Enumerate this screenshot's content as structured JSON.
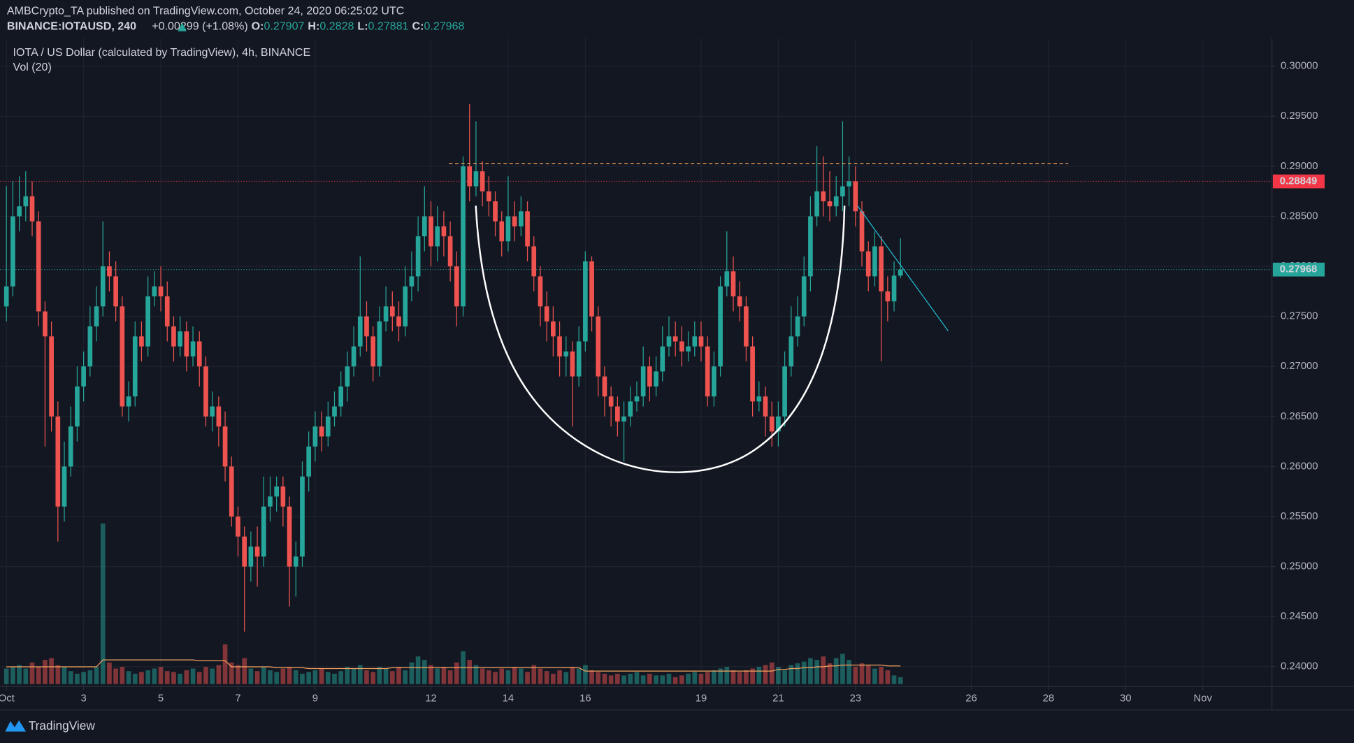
{
  "header": {
    "publisher": "AMBCrypto_TA published on TradingView.com, October 24, 2020 06:25:02 UTC",
    "symbol": "BINANCE:IOTAUSD, 240",
    "change": "+0.00299 (+1.08%)",
    "open_label": "O:",
    "high_label": "H:",
    "low_label": "L:",
    "close_label": "C:"
  },
  "footer": {
    "brand": "TradingView"
  },
  "chart_data": {
    "type": "candlestick",
    "title": "IOTA / US Dollar (calculated by TradingView), 4h, BINANCE",
    "volume_label": "Vol (20)",
    "up_color": "#26a69a",
    "down_color": "#ef5350",
    "volume_ma_color": "#f7a35c",
    "grid": true,
    "xlim": [
      -4,
      787
    ],
    "ylim": [
      0.238,
      0.3028
    ],
    "xticks": [
      {
        "value": 0,
        "label": "Oct"
      },
      {
        "value": 48,
        "label": "3"
      },
      {
        "value": 96,
        "label": "5"
      },
      {
        "value": 144,
        "label": "7"
      },
      {
        "value": 192,
        "label": "9"
      },
      {
        "value": 264,
        "label": "12"
      },
      {
        "value": 312,
        "label": "14"
      },
      {
        "value": 360,
        "label": "16"
      },
      {
        "value": 432,
        "label": "19"
      },
      {
        "value": 480,
        "label": "21"
      },
      {
        "value": 528,
        "label": "23"
      },
      {
        "value": 600,
        "label": "26"
      },
      {
        "value": 648,
        "label": "28"
      },
      {
        "value": 696,
        "label": "30"
      },
      {
        "value": 744,
        "label": "Nov"
      }
    ],
    "yticks": [
      {
        "value": 0.3,
        "label": "0.30000"
      },
      {
        "value": 0.295,
        "label": "0.29500"
      },
      {
        "value": 0.29,
        "label": "0.29000"
      },
      {
        "value": 0.285,
        "label": "0.28500"
      },
      {
        "value": 0.28,
        "label": "0.28000"
      },
      {
        "value": 0.275,
        "label": "0.27500"
      },
      {
        "value": 0.27,
        "label": "0.27000"
      },
      {
        "value": 0.265,
        "label": "0.26500"
      },
      {
        "value": 0.26,
        "label": "0.26000"
      },
      {
        "value": 0.255,
        "label": "0.25500"
      },
      {
        "value": 0.25,
        "label": "0.25000"
      },
      {
        "value": 0.245,
        "label": "0.24500"
      },
      {
        "value": 0.24,
        "label": "0.24000"
      }
    ],
    "price_lines": [
      {
        "value": 0.28849,
        "color": "#f23645"
      },
      {
        "value": 0.27968,
        "color": "#26a69a"
      }
    ],
    "x": [
      0,
      4,
      8,
      12,
      16,
      20,
      24,
      28,
      32,
      36,
      40,
      44,
      48,
      52,
      56,
      60,
      64,
      68,
      72,
      76,
      80,
      84,
      88,
      92,
      96,
      100,
      104,
      108,
      112,
      116,
      120,
      124,
      128,
      132,
      136,
      140,
      144,
      148,
      152,
      156,
      160,
      164,
      168,
      172,
      176,
      180,
      184,
      188,
      192,
      196,
      200,
      204,
      208,
      212,
      216,
      220,
      224,
      228,
      232,
      236,
      240,
      244,
      248,
      252,
      256,
      260,
      264,
      268,
      272,
      276,
      280,
      284,
      288,
      292,
      296,
      300,
      304,
      308,
      312,
      316,
      320,
      324,
      328,
      332,
      336,
      340,
      344,
      348,
      352,
      356,
      360,
      364,
      368,
      372,
      376,
      380,
      384,
      388,
      392,
      396,
      400,
      404,
      408,
      412,
      416,
      420,
      424,
      428,
      432,
      436,
      440,
      444,
      448,
      452,
      456,
      460,
      464,
      468,
      472,
      476,
      480,
      484,
      488,
      492,
      496,
      500,
      504,
      508,
      512,
      516,
      520,
      524,
      528,
      532,
      536,
      540,
      544,
      548,
      552,
      556
    ],
    "open": [
      0.276,
      0.278,
      0.285,
      0.286,
      0.287,
      0.2845,
      0.2755,
      0.273,
      0.265,
      0.256,
      0.26,
      0.264,
      0.268,
      0.27,
      0.274,
      0.276,
      0.28,
      0.279,
      0.276,
      0.266,
      0.267,
      0.273,
      0.272,
      0.277,
      0.278,
      0.277,
      0.274,
      0.272,
      0.2735,
      0.271,
      0.2725,
      0.27,
      0.265,
      0.266,
      0.264,
      0.26,
      0.255,
      0.253,
      0.25,
      0.252,
      0.251,
      0.256,
      0.257,
      0.258,
      0.256,
      0.25,
      0.251,
      0.259,
      0.262,
      0.264,
      0.263,
      0.265,
      0.266,
      0.268,
      0.27,
      0.272,
      0.275,
      0.273,
      0.27,
      0.2745,
      0.276,
      0.275,
      0.274,
      0.278,
      0.279,
      0.283,
      0.285,
      0.282,
      0.284,
      0.283,
      0.28,
      0.276,
      0.29,
      0.288,
      0.2895,
      0.2875,
      0.2865,
      0.2845,
      0.2825,
      0.285,
      0.284,
      0.2855,
      0.282,
      0.279,
      0.276,
      0.2745,
      0.273,
      0.271,
      0.2715,
      0.269,
      0.2725,
      0.2805,
      0.275,
      0.269,
      0.267,
      0.266,
      0.2645,
      0.265,
      0.2665,
      0.267,
      0.27,
      0.268,
      0.2695,
      0.272,
      0.273,
      0.2725,
      0.2715,
      0.272,
      0.273,
      0.272,
      0.267,
      0.27,
      0.278,
      0.2795,
      0.277,
      0.276,
      0.272,
      0.2665,
      0.267,
      0.265,
      0.2635,
      0.265,
      0.27,
      0.273,
      0.275,
      0.279,
      0.285,
      0.2875,
      0.2865,
      0.286,
      0.287,
      0.288,
      0.2885,
      0.2855,
      0.2815,
      0.279,
      0.282,
      0.2775,
      0.2765,
      0.27907
    ],
    "high": [
      0.288,
      0.2885,
      0.289,
      0.2895,
      0.2885,
      0.2855,
      0.2765,
      0.2745,
      0.2665,
      0.2625,
      0.266,
      0.27,
      0.2715,
      0.276,
      0.278,
      0.2845,
      0.2815,
      0.2805,
      0.277,
      0.2685,
      0.2745,
      0.2745,
      0.279,
      0.2795,
      0.28,
      0.2785,
      0.275,
      0.275,
      0.2745,
      0.274,
      0.2735,
      0.271,
      0.2675,
      0.267,
      0.2655,
      0.261,
      0.256,
      0.254,
      0.2535,
      0.254,
      0.259,
      0.259,
      0.259,
      0.259,
      0.257,
      0.2525,
      0.2605,
      0.2635,
      0.2655,
      0.2655,
      0.2665,
      0.2675,
      0.2695,
      0.2715,
      0.274,
      0.281,
      0.2765,
      0.274,
      0.276,
      0.278,
      0.2775,
      0.2765,
      0.28,
      0.2815,
      0.285,
      0.288,
      0.2865,
      0.286,
      0.2855,
      0.2845,
      0.2815,
      0.291,
      0.2962,
      0.2945,
      0.2905,
      0.289,
      0.2875,
      0.2855,
      0.289,
      0.2865,
      0.287,
      0.2865,
      0.283,
      0.28,
      0.2775,
      0.276,
      0.2745,
      0.273,
      0.2725,
      0.274,
      0.2815,
      0.281,
      0.276,
      0.27,
      0.268,
      0.267,
      0.2665,
      0.268,
      0.2685,
      0.272,
      0.271,
      0.271,
      0.274,
      0.275,
      0.2745,
      0.274,
      0.2735,
      0.2745,
      0.2745,
      0.273,
      0.2715,
      0.279,
      0.2835,
      0.281,
      0.2785,
      0.277,
      0.273,
      0.2685,
      0.268,
      0.2665,
      0.2665,
      0.2715,
      0.276,
      0.277,
      0.281,
      0.287,
      0.292,
      0.291,
      0.2895,
      0.289,
      0.2945,
      0.291,
      0.29,
      0.2865,
      0.2825,
      0.2835,
      0.283,
      0.279,
      0.2805,
      0.2828
    ],
    "low": [
      0.2745,
      0.277,
      0.2835,
      0.2845,
      0.283,
      0.274,
      0.262,
      0.2635,
      0.2525,
      0.2545,
      0.259,
      0.2625,
      0.2665,
      0.269,
      0.2725,
      0.275,
      0.2775,
      0.2745,
      0.265,
      0.2645,
      0.266,
      0.2705,
      0.271,
      0.276,
      0.2755,
      0.2725,
      0.2705,
      0.271,
      0.2695,
      0.27,
      0.268,
      0.264,
      0.2635,
      0.262,
      0.2585,
      0.254,
      0.251,
      0.2435,
      0.2485,
      0.248,
      0.25,
      0.2545,
      0.2555,
      0.254,
      0.246,
      0.247,
      0.25,
      0.2575,
      0.2605,
      0.2615,
      0.262,
      0.264,
      0.265,
      0.2665,
      0.269,
      0.271,
      0.2715,
      0.2685,
      0.269,
      0.2735,
      0.2735,
      0.2725,
      0.273,
      0.2765,
      0.2775,
      0.2815,
      0.28,
      0.2805,
      0.281,
      0.2785,
      0.274,
      0.275,
      0.2865,
      0.287,
      0.286,
      0.285,
      0.283,
      0.281,
      0.2815,
      0.2825,
      0.283,
      0.2805,
      0.2775,
      0.274,
      0.2725,
      0.271,
      0.269,
      0.269,
      0.264,
      0.268,
      0.2715,
      0.2735,
      0.267,
      0.265,
      0.264,
      0.263,
      0.2605,
      0.264,
      0.2655,
      0.266,
      0.2665,
      0.267,
      0.2685,
      0.271,
      0.271,
      0.27,
      0.2705,
      0.271,
      0.2705,
      0.266,
      0.266,
      0.269,
      0.277,
      0.2755,
      0.2745,
      0.2705,
      0.265,
      0.2655,
      0.263,
      0.262,
      0.262,
      0.264,
      0.269,
      0.272,
      0.274,
      0.2775,
      0.284,
      0.285,
      0.2845,
      0.285,
      0.2855,
      0.286,
      0.284,
      0.28,
      0.2775,
      0.278,
      0.2705,
      0.2745,
      0.2755,
      0.27881
    ],
    "close": [
      0.278,
      0.285,
      0.286,
      0.287,
      0.2845,
      0.2755,
      0.273,
      0.265,
      0.256,
      0.26,
      0.264,
      0.268,
      0.27,
      0.274,
      0.276,
      0.28,
      0.279,
      0.276,
      0.266,
      0.267,
      0.273,
      0.272,
      0.277,
      0.278,
      0.277,
      0.274,
      0.272,
      0.2735,
      0.271,
      0.2725,
      0.27,
      0.265,
      0.266,
      0.264,
      0.26,
      0.255,
      0.253,
      0.25,
      0.252,
      0.251,
      0.256,
      0.257,
      0.258,
      0.256,
      0.25,
      0.251,
      0.259,
      0.262,
      0.264,
      0.263,
      0.265,
      0.266,
      0.268,
      0.27,
      0.272,
      0.275,
      0.273,
      0.27,
      0.2745,
      0.276,
      0.275,
      0.274,
      0.278,
      0.279,
      0.283,
      0.285,
      0.282,
      0.284,
      0.283,
      0.28,
      0.276,
      0.29,
      0.288,
      0.2895,
      0.2875,
      0.2865,
      0.2845,
      0.2825,
      0.285,
      0.284,
      0.2855,
      0.282,
      0.279,
      0.276,
      0.2745,
      0.273,
      0.271,
      0.2715,
      0.269,
      0.2725,
      0.2805,
      0.275,
      0.269,
      0.267,
      0.266,
      0.2645,
      0.265,
      0.2665,
      0.267,
      0.27,
      0.268,
      0.2695,
      0.272,
      0.273,
      0.2725,
      0.2715,
      0.272,
      0.273,
      0.272,
      0.267,
      0.27,
      0.278,
      0.2795,
      0.277,
      0.276,
      0.272,
      0.2665,
      0.267,
      0.265,
      0.2635,
      0.265,
      0.27,
      0.273,
      0.275,
      0.279,
      0.285,
      0.2875,
      0.2865,
      0.286,
      0.287,
      0.288,
      0.2885,
      0.2855,
      0.2815,
      0.279,
      0.282,
      0.2775,
      0.2765,
      0.27907,
      0.27968
    ],
    "volume": [
      18,
      20,
      22,
      18,
      25,
      20,
      28,
      30,
      22,
      20,
      15,
      12,
      14,
      16,
      20,
      186,
      25,
      18,
      20,
      15,
      12,
      14,
      16,
      18,
      20,
      15,
      14,
      12,
      16,
      18,
      14,
      20,
      18,
      22,
      46,
      25,
      22,
      30,
      18,
      15,
      20,
      16,
      14,
      18,
      20,
      16,
      12,
      14,
      16,
      18,
      14,
      12,
      15,
      20,
      18,
      22,
      16,
      14,
      20,
      18,
      15,
      20,
      16,
      25,
      32,
      28,
      22,
      18,
      20,
      16,
      25,
      38,
      28,
      22,
      18,
      16,
      14,
      18,
      16,
      20,
      18,
      14,
      22,
      18,
      15,
      12,
      16,
      14,
      20,
      18,
      22,
      16,
      14,
      12,
      10,
      12,
      10,
      12,
      14,
      10,
      12,
      10,
      10,
      12,
      8,
      10,
      12,
      14,
      12,
      14,
      16,
      18,
      20,
      16,
      14,
      16,
      18,
      20,
      22,
      25,
      20,
      16,
      22,
      24,
      26,
      30,
      28,
      32,
      24,
      30,
      35,
      28,
      20,
      24,
      22,
      18,
      20,
      16,
      10,
      8
    ],
    "volume_ma": [
      20,
      20,
      20,
      20,
      20,
      20,
      20,
      20,
      20,
      20,
      20,
      20,
      20,
      20,
      20,
      28,
      28,
      28,
      28,
      28,
      28,
      28,
      28,
      28,
      28,
      28,
      28,
      28,
      28,
      28,
      27,
      27,
      27,
      27,
      27,
      20,
      20,
      20,
      20,
      20,
      20,
      20,
      19,
      19,
      19,
      19,
      19,
      18,
      18,
      18,
      18,
      18,
      18,
      18,
      18,
      18,
      18,
      18,
      18,
      18,
      19,
      19,
      19,
      19,
      19,
      19,
      19,
      19,
      19,
      19,
      19,
      19,
      19,
      19,
      19,
      19,
      19,
      19,
      19,
      19,
      19,
      19,
      19,
      19,
      19,
      19,
      19,
      19,
      19,
      19,
      15,
      15,
      15,
      15,
      15,
      15,
      15,
      15,
      15,
      15,
      15,
      15,
      15,
      15,
      15,
      15,
      15,
      15,
      15,
      15,
      15,
      15,
      15,
      15,
      15,
      15,
      15,
      15,
      15,
      15,
      17,
      17,
      18,
      18,
      19,
      19,
      20,
      20,
      21,
      21,
      22,
      22,
      22,
      22,
      22,
      22,
      22,
      21,
      21,
      21
    ]
  }
}
